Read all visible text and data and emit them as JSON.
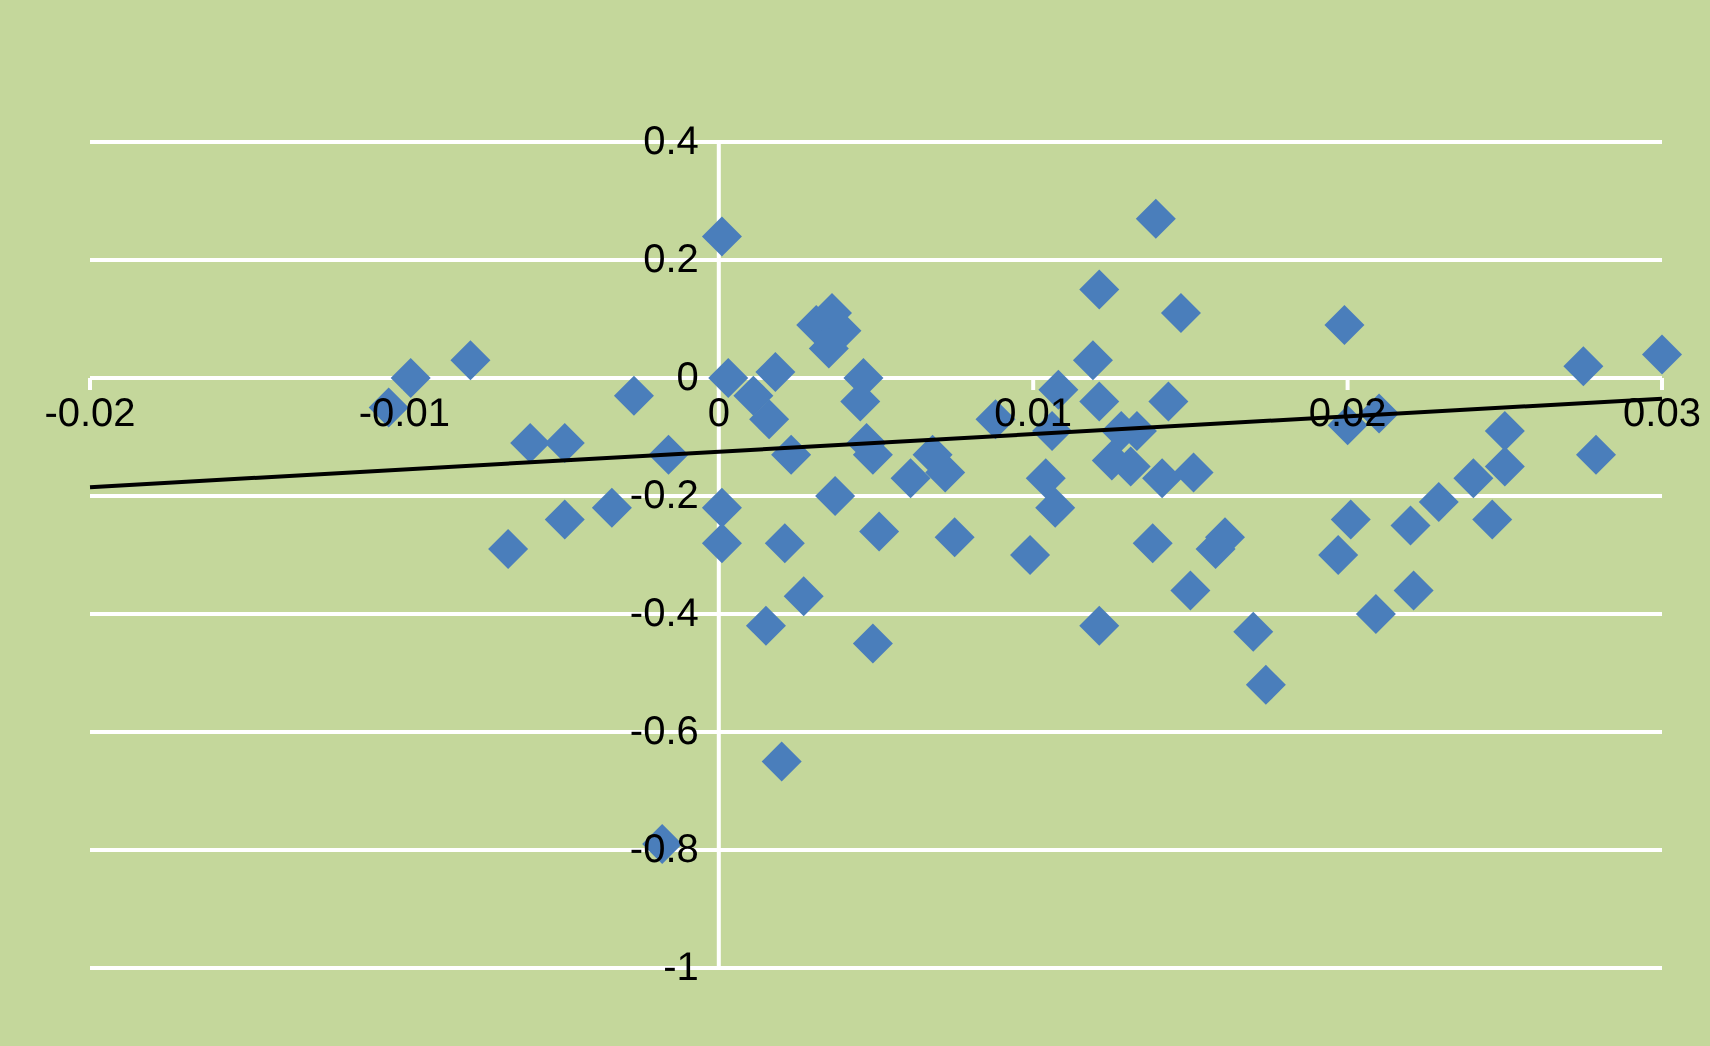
{
  "chart_data": {
    "type": "scatter",
    "xlim": [
      -0.02,
      0.03
    ],
    "ylim": [
      -1,
      0.4
    ],
    "xticks": [
      -0.02,
      -0.01,
      0,
      0.01,
      0.02,
      0.03
    ],
    "yticks": [
      -1,
      -0.8,
      -0.6,
      -0.4,
      -0.2,
      0,
      0.2,
      0.4
    ],
    "grid": "y",
    "series": [
      {
        "marker": "diamond",
        "color": "#4a7ebb",
        "x": [
          -0.0105,
          -0.0098,
          -0.0079,
          -0.0027,
          -0.006,
          -0.0049,
          -0.0016,
          -0.0067,
          -0.0049,
          -0.0034,
          0.0001,
          0.0003,
          0.0011,
          0.0018,
          0.0016,
          0.0031,
          0.0036,
          0.0039,
          0.0035,
          0.0046,
          0.0045,
          0.0023,
          0.0047,
          0.0049,
          0.0001,
          0.0001,
          0.0021,
          0.0037,
          0.0051,
          0.0027,
          0.0015,
          0.0049,
          0.002,
          -0.0018,
          0.0139,
          0.0121,
          0.0147,
          0.0119,
          0.0108,
          0.0121,
          0.0143,
          0.0088,
          0.0106,
          0.0128,
          0.0133,
          0.0068,
          0.0072,
          0.0061,
          0.0104,
          0.0125,
          0.0131,
          0.0141,
          0.0151,
          0.0107,
          0.0075,
          0.0099,
          0.0138,
          0.0158,
          0.0161,
          0.015,
          0.0121,
          0.017,
          0.0174,
          0.0199,
          0.0275,
          0.03,
          0.02,
          0.021,
          0.025,
          0.025,
          0.024,
          0.0229,
          0.0279,
          0.0201,
          0.022,
          0.0246,
          0.0197,
          0.0221,
          0.0209
        ],
        "values": [
          -0.05,
          0.0,
          0.03,
          -0.03,
          -0.11,
          -0.11,
          -0.13,
          -0.29,
          -0.24,
          -0.22,
          0.24,
          0.0,
          -0.03,
          0.01,
          -0.07,
          0.09,
          0.11,
          0.08,
          0.05,
          0.0,
          -0.04,
          -0.13,
          -0.11,
          -0.13,
          -0.22,
          -0.28,
          -0.28,
          -0.2,
          -0.26,
          -0.37,
          -0.42,
          -0.45,
          -0.65,
          -0.79,
          0.27,
          0.15,
          0.11,
          0.03,
          -0.02,
          -0.04,
          -0.04,
          -0.07,
          -0.09,
          -0.09,
          -0.09,
          -0.13,
          -0.16,
          -0.17,
          -0.17,
          -0.14,
          -0.15,
          -0.17,
          -0.16,
          -0.22,
          -0.27,
          -0.3,
          -0.28,
          -0.29,
          -0.27,
          -0.36,
          -0.42,
          -0.43,
          -0.52,
          0.09,
          0.02,
          0.04,
          -0.08,
          -0.06,
          -0.09,
          -0.15,
          -0.17,
          -0.21,
          -0.13,
          -0.24,
          -0.25,
          -0.24,
          -0.3,
          -0.36,
          -0.4
        ]
      },
      {
        "type": "line",
        "color": "#000000",
        "x": [
          -0.02,
          0.03
        ],
        "values": [
          -0.185,
          -0.035
        ]
      }
    ]
  }
}
